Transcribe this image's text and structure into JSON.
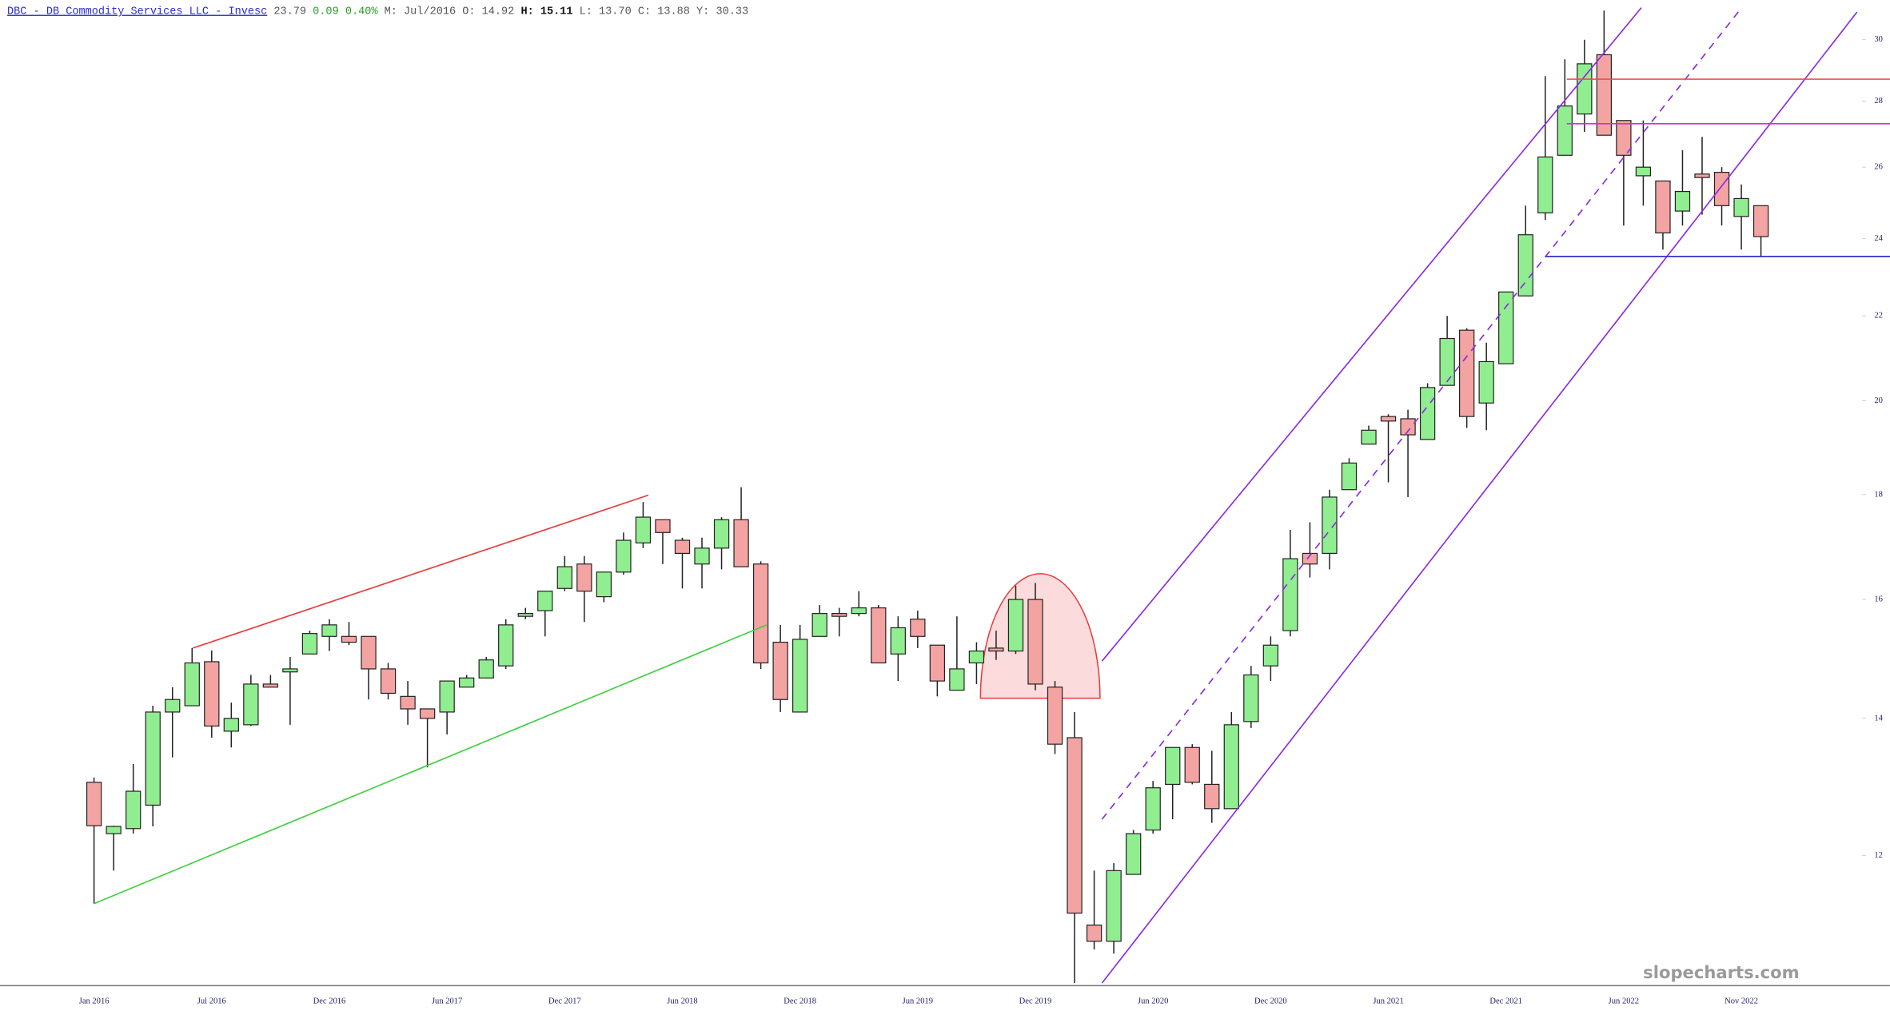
{
  "chart_data": {
    "type": "candlestick",
    "header": {
      "symbol": "DBC - DB Commodity Services LLC - Invesc",
      "last": "23.79",
      "change": "0.09",
      "change_pct": "0.40%",
      "fields": [
        {
          "label": "M:",
          "value": "Jul/2016"
        },
        {
          "label": "O:",
          "value": "14.92"
        },
        {
          "label": "H:",
          "value": "15.11"
        },
        {
          "label": "L:",
          "value": "13.70"
        },
        {
          "label": "C:",
          "value": "13.88"
        },
        {
          "label": "Y:",
          "value": "30.33"
        }
      ]
    },
    "watermark": "slopecharts.com",
    "categories": [
      "Jan 2016",
      null,
      null,
      null,
      null,
      null,
      "Jul 2016",
      null,
      null,
      null,
      null,
      null,
      "Dec 2016",
      null,
      null,
      null,
      null,
      null,
      "Jun 2017",
      null,
      null,
      null,
      null,
      null,
      "Dec 2017",
      null,
      null,
      null,
      null,
      null,
      "Jun 2018",
      null,
      null,
      null,
      null,
      null,
      "Dec 2018",
      null,
      null,
      null,
      null,
      null,
      "Jun 2019",
      null,
      null,
      null,
      null,
      null,
      "Dec 2019",
      null,
      null,
      null,
      null,
      null,
      "Jun 2020",
      null,
      null,
      null,
      null,
      null,
      "Dec 2020",
      null,
      null,
      null,
      null,
      null,
      "Jun 2021",
      null,
      null,
      null,
      null,
      null,
      "Dec 2021",
      null,
      null,
      null,
      null,
      null,
      "Jun 2022",
      null,
      null,
      null,
      null,
      null,
      "Nov 2022",
      null
    ],
    "open": [
      13.03,
      12.3,
      12.37,
      12.7,
      14.1,
      14.2,
      14.92,
      13.8,
      13.9,
      14.55,
      14.75,
      15.05,
      15.35,
      15.35,
      15.35,
      14.8,
      14.35,
      14.15,
      14.1,
      14.5,
      14.65,
      14.85,
      15.7,
      15.8,
      16.2,
      16.65,
      16.05,
      16.5,
      17.05,
      17.5,
      17.1,
      16.65,
      16.95,
      17.5,
      16.65,
      15.25,
      14.1,
      15.35,
      15.75,
      15.75,
      15.85,
      15.05,
      15.65,
      15.2,
      14.45,
      14.9,
      15.15,
      15.1,
      16.0,
      14.5,
      13.7,
      11.1,
      10.9,
      11.75,
      12.35,
      13.0,
      13.55,
      13.0,
      12.65,
      13.95,
      14.85,
      15.45,
      16.85,
      16.85,
      18.1,
      19.05,
      19.65,
      19.6,
      19.15,
      20.35,
      21.65,
      19.95,
      20.85,
      22.5,
      24.7,
      26.35,
      27.6,
      29.5,
      27.4,
      25.75,
      25.6,
      24.75,
      25.8,
      25.85,
      24.6,
      24.9
    ],
    "high": [
      13.1,
      12.41,
      13.3,
      14.2,
      14.5,
      15.15,
      15.11,
      14.25,
      14.7,
      14.7,
      15.0,
      15.45,
      15.65,
      15.6,
      15.35,
      14.9,
      14.6,
      14.15,
      14.6,
      14.7,
      15.0,
      15.65,
      15.85,
      16.15,
      16.8,
      16.8,
      16.5,
      17.25,
      17.85,
      17.5,
      17.15,
      17.15,
      17.55,
      18.15,
      16.7,
      15.55,
      15.55,
      15.9,
      15.85,
      16.15,
      15.9,
      15.7,
      15.8,
      15.2,
      15.7,
      15.25,
      15.45,
      16.25,
      16.3,
      14.6,
      14.1,
      11.8,
      11.9,
      12.35,
      13.05,
      13.55,
      13.6,
      13.5,
      14.1,
      14.85,
      15.35,
      17.3,
      17.45,
      18.1,
      18.75,
      19.45,
      19.7,
      19.8,
      20.4,
      22.0,
      21.7,
      21.35,
      22.6,
      24.9,
      28.8,
      29.35,
      30.0,
      31.0,
      27.4,
      27.4,
      25.6,
      26.5,
      26.9,
      26.0,
      25.5,
      24.9
    ],
    "low": [
      11.37,
      11.8,
      12.3,
      12.4,
      13.4,
      14.2,
      13.7,
      13.55,
      13.88,
      14.5,
      13.9,
      15.05,
      15.1,
      15.2,
      14.3,
      14.3,
      13.9,
      13.25,
      13.75,
      14.5,
      14.65,
      14.8,
      15.65,
      15.35,
      16.15,
      15.6,
      15.95,
      16.45,
      16.95,
      16.65,
      16.2,
      16.2,
      16.55,
      16.6,
      14.8,
      14.1,
      14.1,
      15.35,
      15.35,
      15.7,
      14.9,
      14.6,
      15.15,
      14.35,
      14.45,
      14.55,
      14.95,
      15.05,
      14.45,
      13.45,
      10.4,
      10.8,
      10.75,
      11.75,
      12.3,
      12.5,
      13.0,
      12.45,
      12.65,
      13.85,
      14.6,
      15.35,
      16.4,
      16.55,
      18.1,
      19.05,
      18.25,
      17.95,
      19.15,
      20.35,
      19.4,
      19.35,
      20.85,
      22.5,
      24.5,
      26.35,
      27.05,
      26.95,
      24.35,
      24.9,
      23.7,
      24.35,
      24.65,
      24.35,
      23.7,
      23.5
    ],
    "close": [
      12.41,
      12.4,
      12.9,
      14.1,
      14.3,
      14.9,
      13.88,
      14.0,
      14.55,
      14.5,
      14.8,
      15.4,
      15.55,
      15.25,
      14.8,
      14.4,
      14.15,
      14.0,
      14.6,
      14.65,
      14.95,
      15.55,
      15.75,
      16.15,
      16.6,
      16.15,
      16.5,
      17.1,
      17.55,
      17.25,
      16.85,
      16.95,
      17.5,
      16.6,
      14.9,
      14.3,
      15.3,
      15.75,
      15.7,
      15.85,
      14.9,
      15.5,
      15.35,
      14.6,
      14.8,
      15.1,
      15.1,
      16.0,
      14.55,
      13.6,
      11.25,
      10.9,
      11.8,
      12.3,
      12.95,
      13.55,
      13.03,
      12.65,
      13.9,
      14.7,
      15.2,
      16.75,
      16.65,
      17.95,
      18.65,
      19.35,
      19.55,
      19.25,
      20.3,
      21.45,
      19.65,
      20.9,
      22.6,
      24.1,
      26.3,
      27.85,
      29.2,
      26.95,
      26.35,
      26.0,
      24.15,
      25.3,
      25.7,
      24.9,
      25.1,
      24.05
    ],
    "up_color": "#90ee90",
    "down_color": "#f4a3a3",
    "outline_color": "#222222",
    "ylim": [
      10.37,
      31.37
    ],
    "log_scale": true,
    "yticks": [
      12,
      14,
      16,
      18,
      20,
      22,
      24,
      26,
      28,
      30
    ],
    "trendlines": [
      {
        "x": [
          5.04,
          28.27
        ],
        "y": [
          15.15,
          17.99
        ],
        "color": "#e83a3a",
        "dashed": false
      },
      {
        "x": [
          0,
          34.3
        ],
        "y": [
          11.37,
          15.55
        ],
        "color": "#3fcf3f",
        "dashed": false
      },
      {
        "x": [
          51.4,
          78.9
        ],
        "y": [
          14.93,
          31.1
        ],
        "color": "#8a2be2",
        "dashed": false
      },
      {
        "x": [
          51.4,
          89.9
        ],
        "y": [
          10.4,
          30.95
        ],
        "color": "#8a2be2",
        "dashed": false
      },
      {
        "x": [
          51.4,
          83.9
        ],
        "y": [
          12.5,
          31.0
        ],
        "color": "#8a2be2",
        "dashed": true
      },
      {
        "x": [
          75.1,
          91.6
        ],
        "y": [
          28.7,
          28.7
        ],
        "color": "#e85050",
        "dashed": false
      },
      {
        "x": [
          75.1,
          91.6
        ],
        "y": [
          27.3,
          27.3
        ],
        "color": "#cc33cc",
        "dashed": false
      },
      {
        "x": [
          74.0,
          91.6
        ],
        "y": [
          23.52,
          23.52
        ],
        "color": "#3333cc",
        "dashed": false
      }
    ],
    "highlight": {
      "x": [
        45.2,
        51.3
      ],
      "y": [
        14.32,
        16.47
      ],
      "color": "#e83a3a"
    }
  }
}
